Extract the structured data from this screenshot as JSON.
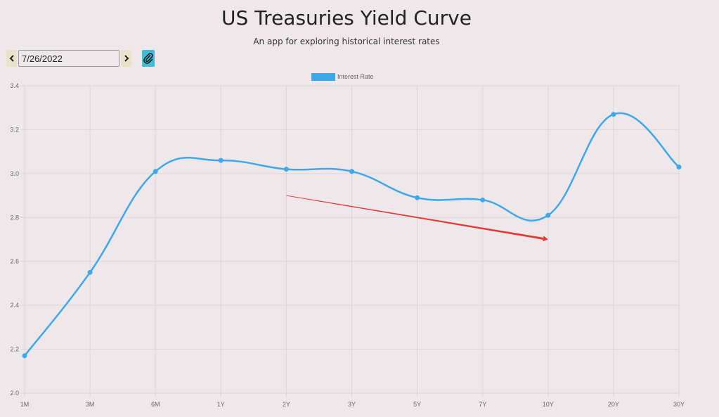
{
  "header": {
    "title": "US Treasuries Yield Curve",
    "subtitle": "An app for exploring historical interest rates"
  },
  "controls": {
    "date_value": "7/26/2022",
    "prev_icon": "chevron-left-icon",
    "next_icon": "chevron-right-icon",
    "link_icon": "paperclip-icon"
  },
  "colors": {
    "series": "#3ea8ea",
    "arrow": "#e53935",
    "grid": "#dcd6d8",
    "tick_text": "#666666",
    "link_button": "#3fbcd8"
  },
  "chart_data": {
    "type": "line",
    "title": "",
    "xlabel": "",
    "ylabel": "",
    "categories": [
      "1M",
      "3M",
      "6M",
      "1Y",
      "2Y",
      "3Y",
      "5Y",
      "7Y",
      "10Y",
      "20Y",
      "30Y"
    ],
    "series": [
      {
        "name": "Interest Rate",
        "values": [
          2.17,
          2.55,
          3.01,
          3.06,
          3.02,
          3.01,
          2.89,
          2.88,
          2.81,
          3.27,
          3.03
        ]
      }
    ],
    "ylim": [
      2.0,
      3.4
    ],
    "yticks": [
      "2.0",
      "2.2",
      "2.4",
      "2.6",
      "2.8",
      "3.0",
      "3.2",
      "3.4"
    ],
    "legend": "top-center",
    "grid": true,
    "annotations": [
      {
        "type": "arrow",
        "from": {
          "x": "2Y",
          "y": 2.9
        },
        "to": {
          "x": "10Y",
          "y": 2.7
        }
      }
    ]
  }
}
